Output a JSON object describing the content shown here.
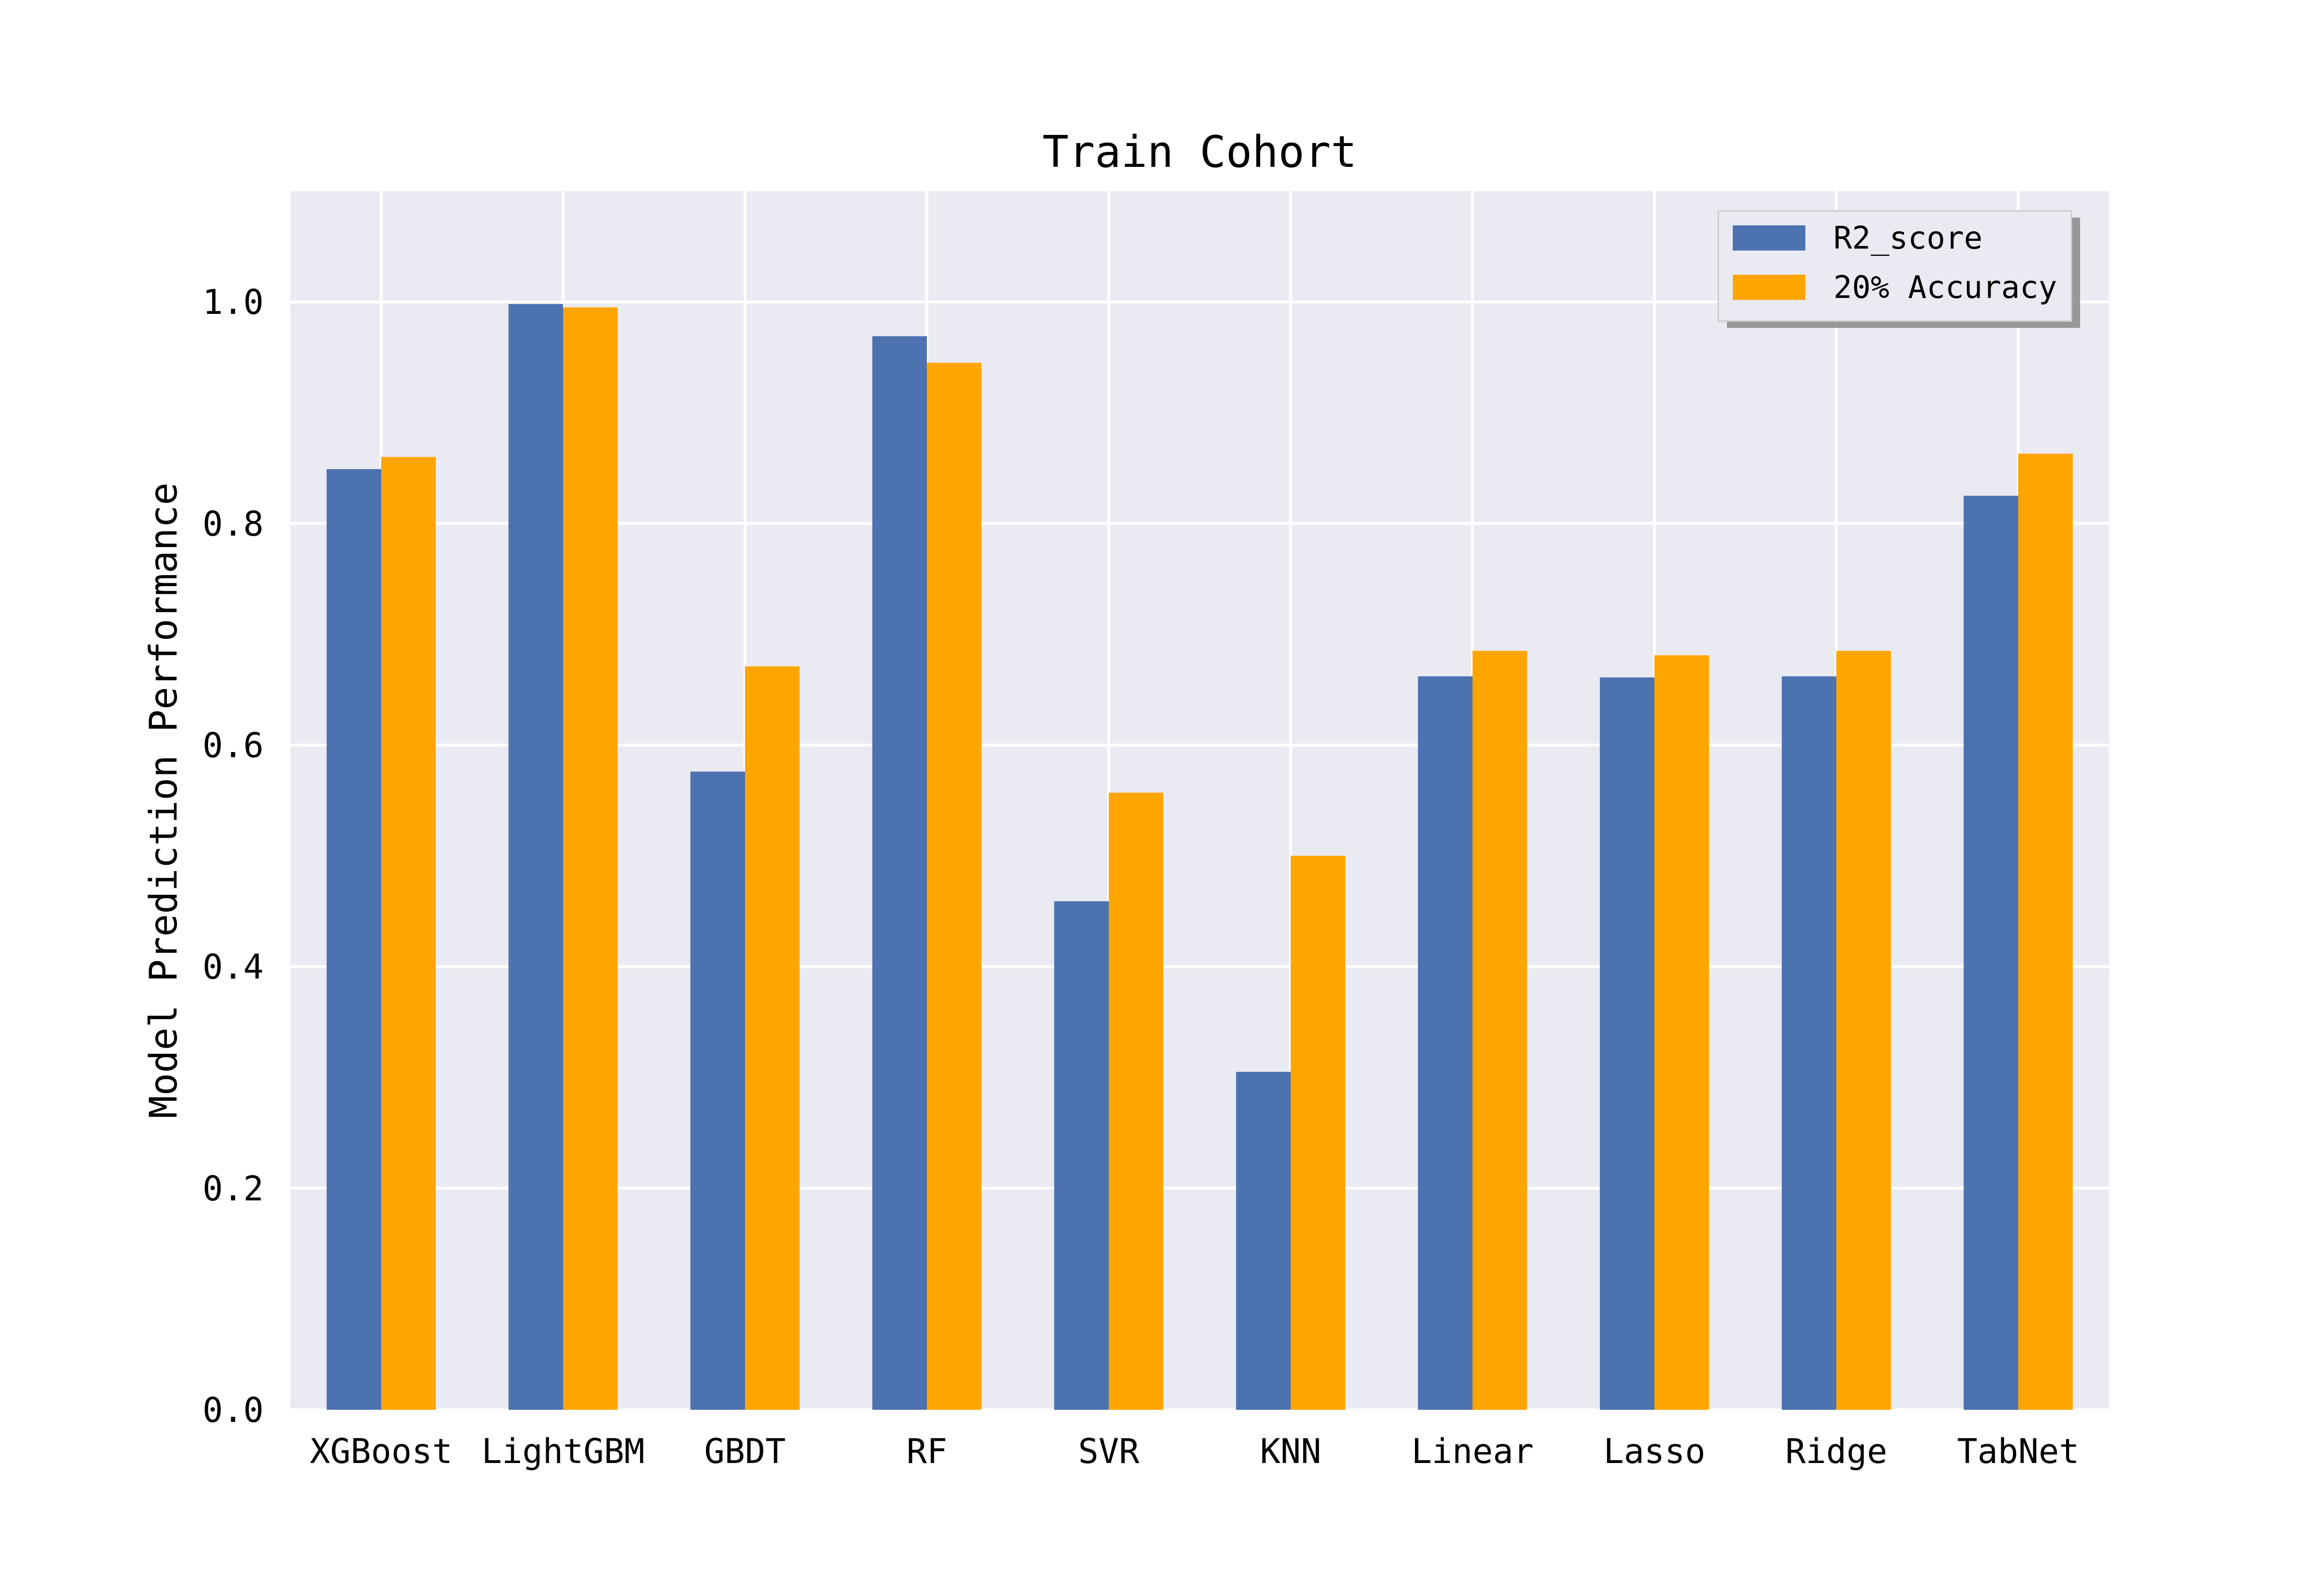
{
  "chart_data": {
    "type": "bar",
    "title": "Train Cohort",
    "xlabel": "",
    "ylabel": "Model Prediction Performance",
    "ylim": [
      0,
      1.1
    ],
    "yticks": [
      "0.0",
      "0.2",
      "0.4",
      "0.6",
      "0.8",
      "1.0"
    ],
    "grid": true,
    "legend_position": "top-right",
    "categories": [
      "XGBoost",
      "LightGBM",
      "GBDT",
      "RF",
      "SVR",
      "KNN",
      "Linear",
      "Lasso",
      "Ridge",
      "TabNet"
    ],
    "series": [
      {
        "name": "R2_score",
        "color": "#4c72b0",
        "values": [
          0.849,
          0.998,
          0.576,
          0.969,
          0.459,
          0.305,
          0.662,
          0.661,
          0.662,
          0.825
        ]
      },
      {
        "name": "20% Accuracy",
        "color": "#ffa500",
        "values": [
          0.86,
          0.995,
          0.671,
          0.945,
          0.557,
          0.5,
          0.685,
          0.681,
          0.685,
          0.863
        ]
      }
    ],
    "colors": {
      "plot_background": "#eaeaf2",
      "grid": "#ffffff"
    }
  }
}
